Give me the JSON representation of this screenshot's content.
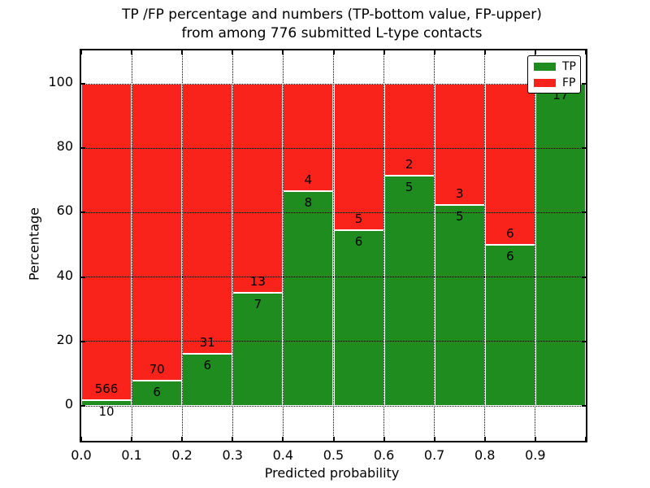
{
  "title": {
    "line1": "TP /FP percentage and numbers (TP-bottom value, FP-upper)",
    "line2": "from among 776 submitted L-type contacts"
  },
  "axes": {
    "xlabel": "Predicted probability",
    "ylabel": "Percentage",
    "x_tick_labels": [
      "0.0",
      "0.1",
      "0.2",
      "0.3",
      "0.4",
      "0.5",
      "0.6",
      "0.7",
      "0.8",
      "0.9"
    ],
    "y_tick_labels": [
      "0",
      "20",
      "40",
      "60",
      "80",
      "100"
    ]
  },
  "legend": {
    "items": [
      {
        "label": "TP",
        "color": "#1e8c1e"
      },
      {
        "label": "FP",
        "color": "#fa231b"
      }
    ],
    "position": "upper right"
  },
  "colors": {
    "tp_green": "#1e8c1e",
    "fp_red": "#fa231b",
    "grid": "#000000",
    "background": "#ffffff"
  },
  "chart_data": {
    "type": "bar",
    "stacked": true,
    "title": "TP /FP percentage and numbers (TP-bottom value, FP-upper) from among 776 submitted L-type contacts",
    "xlabel": "Predicted probability",
    "ylabel": "Percentage",
    "xlim": [
      0.0,
      1.0
    ],
    "ylim": [
      -11,
      110
    ],
    "grid": true,
    "legend_position": "upper right",
    "total_contacts": 776,
    "x_tick_values": [
      0.0,
      0.1,
      0.2,
      0.3,
      0.4,
      0.5,
      0.6,
      0.7,
      0.8,
      0.9
    ],
    "y_tick_values": [
      0,
      20,
      40,
      60,
      80,
      100
    ],
    "bins": [
      {
        "x_start": 0.0,
        "x_end": 0.1,
        "tp_count": 10,
        "fp_count": 566,
        "tp_pct": 1.74,
        "fp_pct": 98.26
      },
      {
        "x_start": 0.1,
        "x_end": 0.2,
        "tp_count": 6,
        "fp_count": 70,
        "tp_pct": 7.89,
        "fp_pct": 92.11
      },
      {
        "x_start": 0.2,
        "x_end": 0.3,
        "tp_count": 6,
        "fp_count": 31,
        "tp_pct": 16.22,
        "fp_pct": 83.78
      },
      {
        "x_start": 0.3,
        "x_end": 0.4,
        "tp_count": 7,
        "fp_count": 13,
        "tp_pct": 35.0,
        "fp_pct": 65.0
      },
      {
        "x_start": 0.4,
        "x_end": 0.5,
        "tp_count": 8,
        "fp_count": 4,
        "tp_pct": 66.67,
        "fp_pct": 33.33
      },
      {
        "x_start": 0.5,
        "x_end": 0.6,
        "tp_count": 6,
        "fp_count": 5,
        "tp_pct": 54.55,
        "fp_pct": 45.45
      },
      {
        "x_start": 0.6,
        "x_end": 0.7,
        "tp_count": 5,
        "fp_count": 2,
        "tp_pct": 71.43,
        "fp_pct": 28.57
      },
      {
        "x_start": 0.7,
        "x_end": 0.8,
        "tp_count": 5,
        "fp_count": 3,
        "tp_pct": 62.5,
        "fp_pct": 37.5
      },
      {
        "x_start": 0.8,
        "x_end": 0.9,
        "tp_count": 6,
        "fp_count": 6,
        "tp_pct": 50.0,
        "fp_pct": 50.0
      },
      {
        "x_start": 0.9,
        "x_end": 1.0,
        "tp_count": 17,
        "fp_count": 0,
        "tp_pct": 100.0,
        "fp_pct": 0.0
      }
    ],
    "series": [
      {
        "name": "TP",
        "color": "#1e8c1e",
        "counts": [
          10,
          6,
          6,
          7,
          8,
          6,
          5,
          5,
          6,
          17
        ],
        "values_pct": [
          1.74,
          7.89,
          16.22,
          35.0,
          66.67,
          54.55,
          71.43,
          62.5,
          50.0,
          100.0
        ]
      },
      {
        "name": "FP",
        "color": "#fa231b",
        "counts": [
          566,
          70,
          31,
          13,
          4,
          5,
          2,
          3,
          6,
          0
        ],
        "values_pct": [
          98.26,
          92.11,
          83.78,
          65.0,
          33.33,
          45.45,
          28.57,
          37.5,
          50.0,
          0.0
        ]
      }
    ]
  }
}
